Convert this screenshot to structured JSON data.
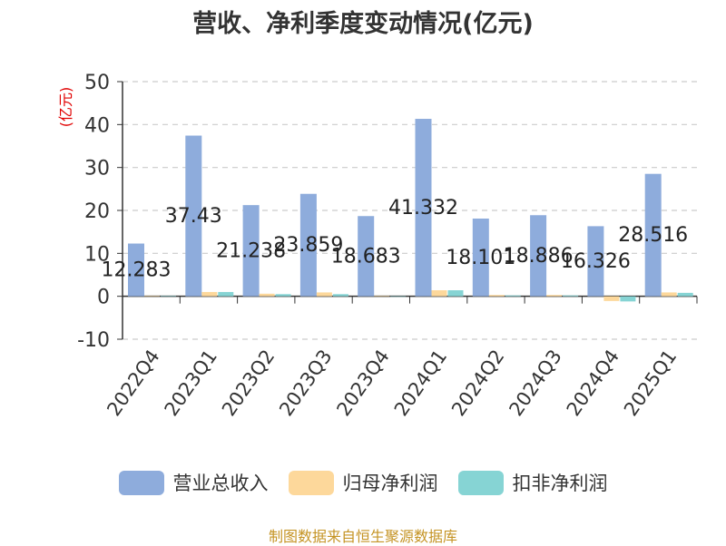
{
  "chart_data": {
    "type": "bar",
    "title": "营收、净利季度变动情况(亿元)",
    "ylabel": "(亿元)",
    "ylim": [
      -10,
      50
    ],
    "yticks": [
      50,
      40,
      30,
      20,
      10,
      0,
      -10
    ],
    "grid": true,
    "legend_position": "bottom",
    "categories": [
      "2022Q4",
      "2023Q1",
      "2023Q2",
      "2023Q3",
      "2023Q4",
      "2024Q1",
      "2024Q2",
      "2024Q3",
      "2024Q4",
      "2025Q1"
    ],
    "series": [
      {
        "name": "营业总收入",
        "color": "#8eacdc",
        "values": [
          12.283,
          37.43,
          21.238,
          23.859,
          18.683,
          41.332,
          18.101,
          18.886,
          16.326,
          28.516
        ],
        "data_labels": [
          "12.283",
          "37.43",
          "21.238",
          "23.859",
          "18.683",
          "41.332",
          "18.101",
          "18.886",
          "16.326",
          "28.516"
        ]
      },
      {
        "name": "归母净利润",
        "color": "#fdd89b",
        "values": [
          0.1,
          1.0,
          0.6,
          0.9,
          0.05,
          1.4,
          0.3,
          0.3,
          -1.1,
          0.9
        ]
      },
      {
        "name": "扣非净利润",
        "color": "#86d4d4",
        "values": [
          0.05,
          1.0,
          0.5,
          0.5,
          0.0,
          1.4,
          0.2,
          0.2,
          -1.2,
          0.8
        ]
      }
    ]
  },
  "source": "制图数据来自恒生聚源数据库"
}
